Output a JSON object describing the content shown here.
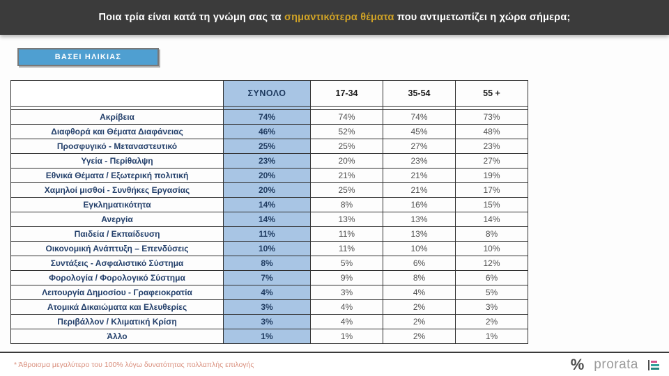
{
  "header": {
    "title_pre": "Ποια τρία είναι κατά τη γνώμη σας τα ",
    "title_highlight": "σημαντικότερα θέματα",
    "title_post": " που αντιμετωπίζει η χώρα σήμερα;",
    "highlight_color": "#cfa226",
    "band_color": "#3b3b3b"
  },
  "filter_button": {
    "label": "ΒΑΣΕΙ ΗΛΙΚΙΑΣ",
    "fill_color": "#4f9fd1"
  },
  "chart_data": {
    "type": "table",
    "title": "Ποια τρία είναι κατά τη γνώμη σας τα σημαντικότερα θέματα που αντιμετωπίζει η χώρα σήμερα;",
    "group_label": "ΒΑΣΕΙ ΗΛΙΚΙΑΣ",
    "columns": [
      "ΣΥΝΟΛΟ",
      "17-34",
      "35-54",
      "55 +"
    ],
    "unit": "%",
    "highlight_column": "ΣΥΝΟΛΟ",
    "highlight_color": "#a8c5e4",
    "rows": [
      {
        "label": "Ακρίβεια",
        "values_pct": [
          74,
          74,
          74,
          73
        ]
      },
      {
        "label": "Διαφθορά και Θέματα Διαφάνειας",
        "values_pct": [
          46,
          52,
          45,
          48
        ]
      },
      {
        "label": "Προσφυγικό - Μεταναστευτικό",
        "values_pct": [
          25,
          25,
          27,
          23
        ]
      },
      {
        "label": "Υγεία - Περίθαλψη",
        "values_pct": [
          23,
          20,
          23,
          27
        ]
      },
      {
        "label": "Εθνικά Θέματα / Εξωτερική πολιτική",
        "values_pct": [
          20,
          21,
          21,
          19
        ]
      },
      {
        "label": "Χαμηλοί μισθοί - Συνθήκες Εργασίας",
        "values_pct": [
          20,
          25,
          21,
          17
        ]
      },
      {
        "label": "Εγκληματικότητα",
        "values_pct": [
          14,
          8,
          16,
          15
        ]
      },
      {
        "label": "Ανεργία",
        "values_pct": [
          14,
          13,
          13,
          14
        ]
      },
      {
        "label": "Παιδεία / Εκπαίδευση",
        "values_pct": [
          11,
          11,
          13,
          8
        ]
      },
      {
        "label": "Οικονομική Ανάπτυξη – Επενδύσεις",
        "values_pct": [
          10,
          11,
          10,
          10
        ]
      },
      {
        "label": "Συντάξεις - Ασφαλιστικό Σύστημα",
        "values_pct": [
          8,
          5,
          6,
          12
        ]
      },
      {
        "label": "Φορολογία / Φορολογικό Σύστημα",
        "values_pct": [
          7,
          9,
          8,
          6
        ]
      },
      {
        "label": "Λειτουργία Δημοσίου - Γραφειοκρατία",
        "values_pct": [
          4,
          3,
          4,
          5
        ]
      },
      {
        "label": "Ατομικά Δικαιώματα και Ελευθερίες",
        "values_pct": [
          3,
          4,
          2,
          3
        ]
      },
      {
        "label": "Περιβάλλον / Κλιματική Κρίση",
        "values_pct": [
          3,
          4,
          2,
          2
        ]
      },
      {
        "label": "Άλλο",
        "values_pct": [
          1,
          1,
          2,
          1
        ]
      }
    ],
    "note": "* Άθροισμα μεγαλύτερο του 100% λόγω δυνατότητας πολλαπλής επιλογής"
  },
  "footer": {
    "note": "* Άθροισμα μεγαλύτερο του 100% λόγω δυνατότητας πολλαπλής επιλογής",
    "note_color": "#d98f7d",
    "logo_percent": "%",
    "logo_text": "prorata"
  }
}
